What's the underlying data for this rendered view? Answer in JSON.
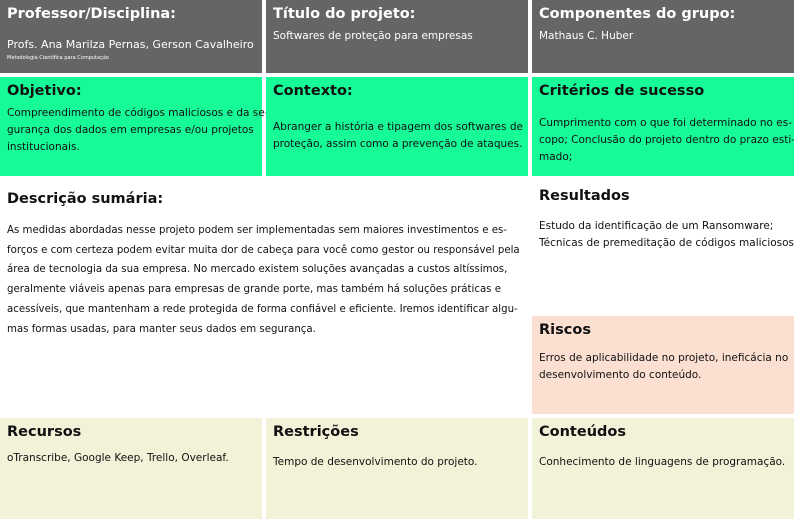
{
  "colors": {
    "header": "#666566",
    "green": "#16fb98",
    "risk": "#fbe0d2",
    "bottom": "#f2f2d8"
  },
  "professor": {
    "title": "Professor/Disciplina:",
    "text": "Profs. Ana Marilza Pernas, Gerson Cavalheiro",
    "course": "Metodologia Científica para Computação"
  },
  "titulo": {
    "title": "Título do projeto:",
    "text": "Softwares de proteção para empresas"
  },
  "componentes": {
    "title": "Componentes do grupo:",
    "text": "Mathaus C. Huber"
  },
  "objetivo": {
    "title": "Objetivo:",
    "lines": [
      "Compreendimento de códigos maliciosos e da se-",
      "gurança dos dados em empresas e/ou projetos",
      "institucionais."
    ]
  },
  "contexto": {
    "title": "Contexto:",
    "lines": [
      "Abranger a história e tipagem dos softwares de",
      "proteção, assim como a prevenção de ataques."
    ]
  },
  "criterios": {
    "title": "Critérios de sucesso",
    "lines": [
      "Cumprimento com o que foi determinado no es-",
      "copo; Conclusão do projeto dentro do prazo esti-",
      "mado;"
    ]
  },
  "descricao": {
    "title": "Descrição sumária:",
    "lines": [
      "As medidas abordadas nesse projeto podem ser implementadas sem maiores investimentos e es-",
      "forços e com certeza podem evitar muita dor de cabeça para você como gestor ou responsável pela",
      "área de tecnologia da sua empresa.  No mercado existem soluções avançadas a custos altíssimos,",
      "geralmente viáveis apenas para empresas de grande porte, mas também há soluções práticas e",
      "acessíveis, que mantenham a rede protegida de forma confiável e eficiente.  Iremos identificar algu-",
      "mas formas usadas, para manter seus dados em segurança."
    ]
  },
  "resultados": {
    "title": "Resultados",
    "lines": [
      "Estudo da identificação de um Ransomware;",
      "Técnicas de premeditação de códigos maliciosos."
    ]
  },
  "riscos": {
    "title": "Riscos",
    "lines": [
      "Erros de aplicabilidade no projeto, ineficácia no",
      "desenvolvimento do conteúdo."
    ]
  },
  "recursos": {
    "title": "Recursos",
    "text": "oTranscribe, Google Keep, Trello, Overleaf."
  },
  "restricoes": {
    "title": "Restrições",
    "text": "Tempo de desenvolvimento do projeto."
  },
  "conteudos": {
    "title": "Conteúdos",
    "text": "Conhecimento de linguagens de programação."
  }
}
